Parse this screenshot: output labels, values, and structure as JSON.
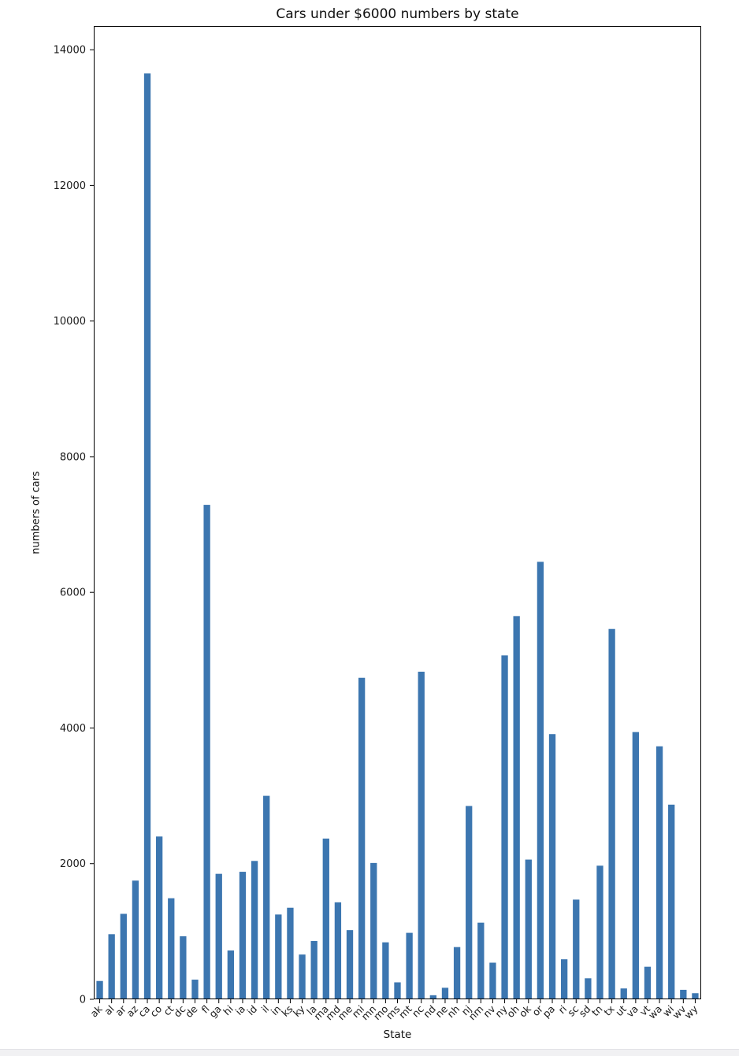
{
  "chart_data": {
    "type": "bar",
    "title": "Cars under $6000 numbers by state",
    "xlabel": "State",
    "ylabel": "numbers of cars",
    "categories": [
      "ak",
      "al",
      "ar",
      "az",
      "ca",
      "co",
      "ct",
      "dc",
      "de",
      "fl",
      "ga",
      "hi",
      "ia",
      "id",
      "il",
      "in",
      "ks",
      "ky",
      "la",
      "ma",
      "md",
      "me",
      "mi",
      "mn",
      "mo",
      "ms",
      "mt",
      "nc",
      "nd",
      "ne",
      "nh",
      "nj",
      "nm",
      "nv",
      "ny",
      "oh",
      "ok",
      "or",
      "pa",
      "ri",
      "sc",
      "sd",
      "tn",
      "tx",
      "ut",
      "va",
      "vt",
      "wa",
      "wi",
      "wv",
      "wy"
    ],
    "values": [
      270,
      960,
      1260,
      1750,
      13650,
      2400,
      1490,
      930,
      290,
      7290,
      1850,
      720,
      1880,
      2040,
      3000,
      1250,
      1350,
      660,
      860,
      2370,
      1430,
      1020,
      4740,
      2010,
      840,
      250,
      980,
      4830,
      60,
      170,
      770,
      2850,
      1130,
      540,
      5070,
      5650,
      2060,
      6450,
      3910,
      590,
      1470,
      310,
      1970,
      5460,
      160,
      3940,
      480,
      3730,
      2870,
      140,
      90
    ],
    "ylim": [
      0,
      14350
    ],
    "yticks": [
      0,
      2000,
      4000,
      6000,
      8000,
      10000,
      12000,
      14000
    ],
    "xtick_rotation_deg": 45,
    "grid": false,
    "legend": "none",
    "bar_color": "#3c76b0",
    "axis_color": "#000000",
    "background": "#ffffff"
  }
}
